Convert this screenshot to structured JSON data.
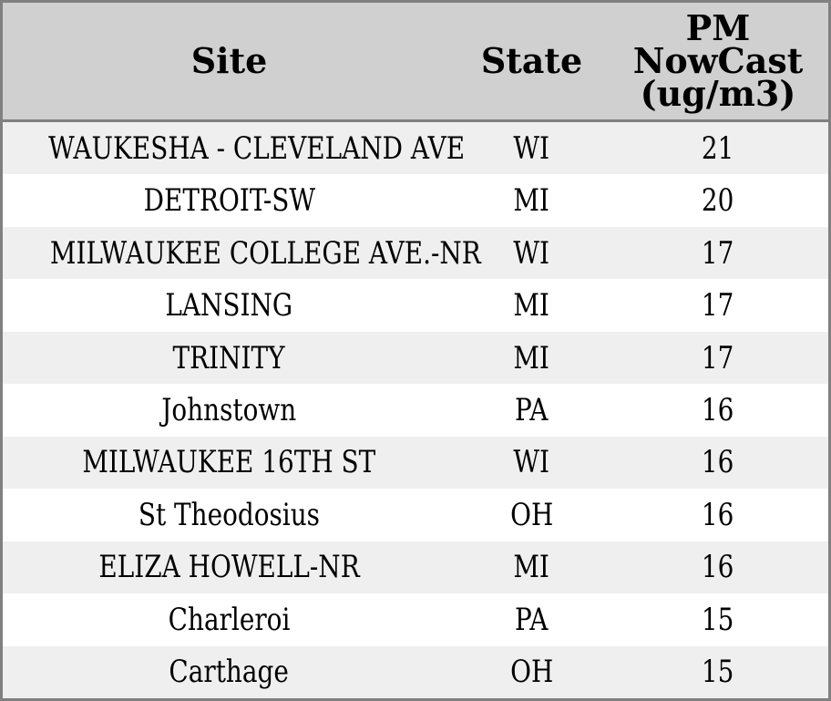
{
  "colors": {
    "border": "#808080",
    "header_bg": "#d0d0d0",
    "row_shaded_bg": "#efefef",
    "row_bg": "#ffffff",
    "text": "#000000"
  },
  "table": {
    "header": {
      "site": "Site",
      "state": "State",
      "pm_lines": [
        "PM",
        "NowCast",
        "(ug/m3)"
      ]
    },
    "rows": [
      {
        "site": "WAUKESHA - CLEVELAND AVE",
        "state": "WI",
        "pm": "21"
      },
      {
        "site": "DETROIT-SW",
        "state": "MI",
        "pm": "20"
      },
      {
        "site": "MILWAUKEE COLLEGE AVE.-NR",
        "state": "WI",
        "pm": "17"
      },
      {
        "site": "LANSING",
        "state": "MI",
        "pm": "17"
      },
      {
        "site": "TRINITY",
        "state": "MI",
        "pm": "17"
      },
      {
        "site": "Johnstown",
        "state": "PA",
        "pm": "16"
      },
      {
        "site": "MILWAUKEE 16TH ST",
        "state": "WI",
        "pm": "16"
      },
      {
        "site": "St Theodosius",
        "state": "OH",
        "pm": "16"
      },
      {
        "site": "ELIZA HOWELL-NR",
        "state": "MI",
        "pm": "16"
      },
      {
        "site": "Charleroi",
        "state": "PA",
        "pm": "15"
      },
      {
        "site": "Carthage",
        "state": "OH",
        "pm": "15"
      }
    ]
  },
  "chart_data": {
    "type": "table",
    "columns": [
      "Site",
      "State",
      "PM NowCast (ug/m3)"
    ],
    "rows": [
      [
        "WAUKESHA - CLEVELAND AVE",
        "WI",
        21
      ],
      [
        "DETROIT-SW",
        "MI",
        20
      ],
      [
        "MILWAUKEE COLLEGE AVE.-NR",
        "WI",
        17
      ],
      [
        "LANSING",
        "MI",
        17
      ],
      [
        "TRINITY",
        "MI",
        17
      ],
      [
        "Johnstown",
        "PA",
        16
      ],
      [
        "MILWAUKEE 16TH ST",
        "WI",
        16
      ],
      [
        "St Theodosius",
        "OH",
        16
      ],
      [
        "ELIZA HOWELL-NR",
        "MI",
        16
      ],
      [
        "Charleroi",
        "PA",
        15
      ],
      [
        "Carthage",
        "OH",
        15
      ]
    ],
    "layout": {
      "header_background": "#d0d0d0",
      "striped": true,
      "stripe_color": "#efefef",
      "value_unit": "ug/m3"
    }
  }
}
